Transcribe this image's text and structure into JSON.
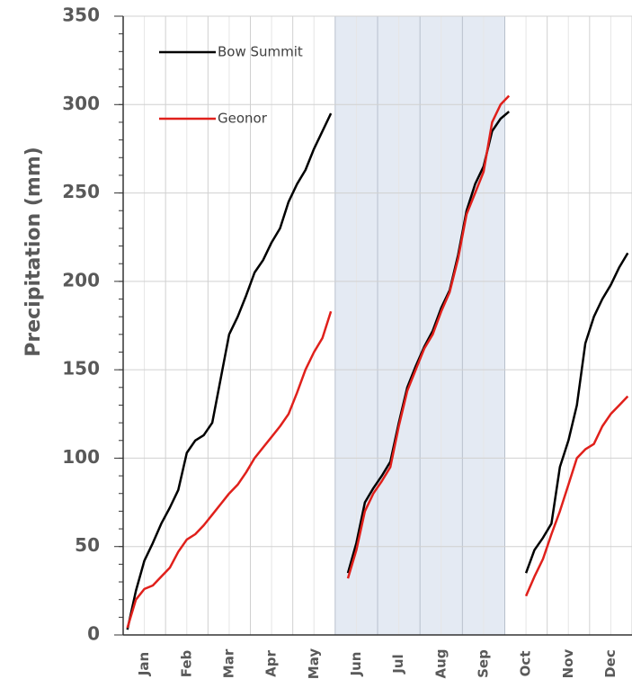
{
  "chart_data": {
    "type": "line",
    "y_label": "Precipitation (mm)",
    "categories": [
      null,
      null,
      "Jan",
      null,
      null,
      null,
      null,
      "Feb",
      null,
      null,
      null,
      null,
      "Mar",
      null,
      null,
      null,
      null,
      "Apr",
      null,
      null,
      null,
      null,
      "May",
      null,
      null,
      null,
      null,
      "Jun",
      null,
      null,
      null,
      null,
      "Jul",
      null,
      null,
      null,
      null,
      "Aug",
      null,
      null,
      null,
      null,
      "Sep",
      null,
      null,
      null,
      null,
      "Oct",
      null,
      null,
      null,
      null,
      "Nov",
      null,
      null,
      null,
      null,
      "Dec",
      null,
      null
    ],
    "series": [
      {
        "name": "Bow Summit",
        "color": "#000000",
        "values": [
          3,
          25,
          42,
          52,
          63,
          72,
          82,
          103,
          110,
          113,
          120,
          145,
          170,
          180,
          192,
          205,
          212,
          222,
          230,
          245,
          255,
          263,
          275,
          285,
          295,
          null,
          35,
          52,
          75,
          83,
          90,
          98,
          120,
          140,
          152,
          163,
          172,
          185,
          195,
          215,
          240,
          255,
          265,
          285,
          292,
          296,
          null,
          35,
          48,
          55,
          63,
          95,
          110,
          130,
          165,
          180,
          190,
          198,
          208,
          216
        ]
      },
      {
        "name": "Geonor",
        "color": "#e0201b",
        "values": [
          4,
          20,
          26,
          28,
          33,
          38,
          47,
          54,
          57,
          62,
          68,
          74,
          80,
          85,
          92,
          100,
          106,
          112,
          118,
          125,
          137,
          150,
          160,
          168,
          183,
          null,
          32,
          48,
          70,
          80,
          87,
          95,
          118,
          138,
          150,
          162,
          170,
          183,
          194,
          213,
          238,
          250,
          262,
          290,
          300,
          305,
          null,
          22,
          33,
          43,
          57,
          70,
          85,
          100,
          105,
          108,
          118,
          125,
          130,
          135
        ]
      }
    ],
    "ylim": [
      0,
      350
    ],
    "yticks": [
      0,
      50,
      100,
      150,
      200,
      250,
      300,
      350
    ],
    "grid": true,
    "legend": "upper left"
  }
}
